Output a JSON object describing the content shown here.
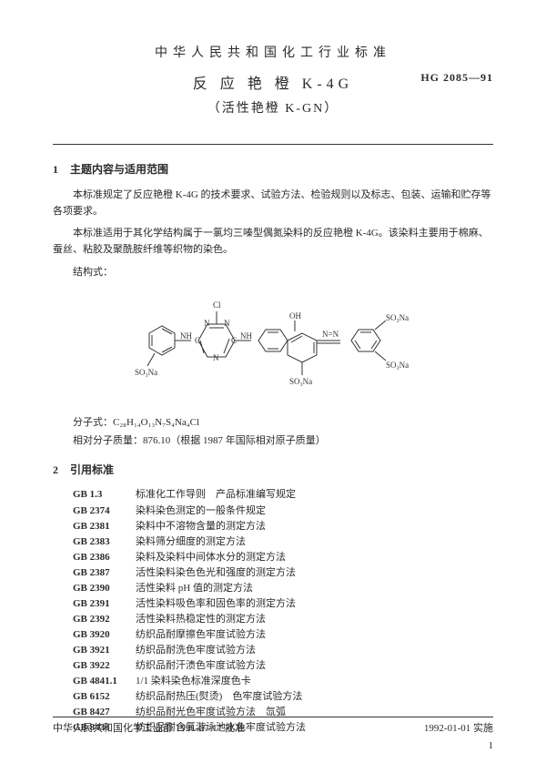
{
  "header": {
    "org": "中华人民共和国化工行业标准",
    "code": "HG 2085—91",
    "title_main": "反 应 艳 橙 K-4G",
    "title_sub": "（活性艳橙 K-GN）"
  },
  "section1": {
    "num": "1",
    "title": "主题内容与适用范围",
    "p1": "本标准规定了反应艳橙 K-4G 的技术要求、试验方法、检验规则以及标志、包装、运输和贮存等各项要求。",
    "p2": "本标准适用于其化学结构属于一氯均三嗪型偶氮染料的反应艳橙 K-4G。该染料主要用于棉麻、蚕丝、粘胶及聚酰胺纤维等织物的染色。",
    "struct_label": "结构式：",
    "formula_label": "分子式：",
    "formula": "C₂₈H₁₄O₁₃N₇S₄Na₄Cl",
    "mass_label": "相对分子质量：",
    "mass_value": "876.10（根据 1987 年国际相对原子质量）"
  },
  "structure": {
    "labels": {
      "Cl": "Cl",
      "N1": "N",
      "N2": "N",
      "N3": "N",
      "N4": "N",
      "C1": "C",
      "C2": "C",
      "C3": "C",
      "NH1": "NH",
      "NH2": "NH",
      "OH": "OH",
      "SO3Na_1": "SO₃Na",
      "SO3Na_2": "SO₃Na",
      "SO3Na_3": "SO₃Na",
      "SO3Na_4": "SO₃Na",
      "NeqN": "N=N"
    },
    "stroke": "#333333",
    "stroke_width": 1
  },
  "section2": {
    "num": "2",
    "title": "引用标准",
    "refs": [
      {
        "code": "GB 1.3",
        "text": "标准化工作导则　产品标准编写规定"
      },
      {
        "code": "GB 2374",
        "text": "染料染色测定的一般条件规定"
      },
      {
        "code": "GB 2381",
        "text": "染料中不溶物含量的测定方法"
      },
      {
        "code": "GB 2383",
        "text": "染料筛分细度的测定方法"
      },
      {
        "code": "GB 2386",
        "text": "染料及染料中间体水分的测定方法"
      },
      {
        "code": "GB 2387",
        "text": "活性染料染色色光和强度的测定方法"
      },
      {
        "code": "GB 2390",
        "text": "活性染料 pH 值的测定方法"
      },
      {
        "code": "GB 2391",
        "text": "活性染料吸色率和固色率的测定方法"
      },
      {
        "code": "GB 2392",
        "text": "活性染料热稳定性的测定方法"
      },
      {
        "code": "GB 3920",
        "text": "纺织品耐摩擦色牢度试验方法"
      },
      {
        "code": "GB 3921",
        "text": "纺织品耐洗色牢度试验方法"
      },
      {
        "code": "GB 3922",
        "text": "纺织品耐汗渍色牢度试验方法"
      },
      {
        "code": "GB 4841.1",
        "text": "1/1 染料染色标准深度色卡"
      },
      {
        "code": "GB 6152",
        "text": "纺织品耐热压(熨烫)　色牢度试验方法"
      },
      {
        "code": "GB 8427",
        "text": "纺织品耐光色牢度试验方法　氙弧"
      },
      {
        "code": "GB 8433",
        "text": "纺织品耐含氯游泳池水色牢度试验方法"
      }
    ]
  },
  "footer": {
    "left": "中华人民共和国化学工业部 1991-07-17 批准",
    "right": "1992-01-01 实施",
    "page": "1"
  }
}
